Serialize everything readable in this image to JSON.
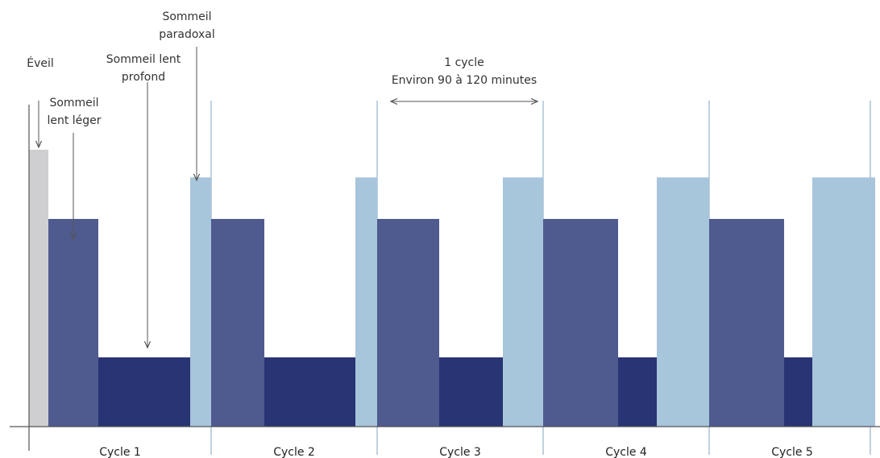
{
  "colors": {
    "eveil": "#cfcfd1",
    "leger": "#4f5a8f",
    "profond": "#283474",
    "paradoxal": "#a7c5db",
    "axis": "#555555",
    "separator": "#9fb8cf",
    "arrow": "#555555"
  },
  "annotations": {
    "eveil": [
      "Éveil"
    ],
    "leger": [
      "Sommeil",
      "lent léger"
    ],
    "profond": [
      "Sommeil lent",
      "profond"
    ],
    "paradoxal": [
      "Sommeil",
      "paradoxal"
    ],
    "cycle_span": [
      "1 cycle",
      "Environ 90 à 120  minutes"
    ]
  },
  "chart_data": {
    "type": "bar",
    "title": "",
    "xlabel": "",
    "ylabel": "",
    "stage_levels": {
      "Éveil": 4,
      "Sommeil lent léger": 3,
      "Sommeil lent profond": 1,
      "Sommeil paradoxal": 3.6
    },
    "cycles": [
      {
        "label": "Cycle 1",
        "stages": [
          "Éveil",
          "Sommeil lent léger",
          "Sommeil lent profond",
          "Sommeil paradoxal"
        ]
      },
      {
        "label": "Cycle 2",
        "stages": [
          "Sommeil lent léger",
          "Sommeil lent profond",
          "Sommeil paradoxal"
        ]
      },
      {
        "label": "Cycle 3",
        "stages": [
          "Sommeil lent léger",
          "Sommeil lent profond",
          "Sommeil paradoxal"
        ]
      },
      {
        "label": "Cycle 4",
        "stages": [
          "Sommeil lent léger",
          "Sommeil lent profond",
          "Sommeil paradoxal"
        ]
      },
      {
        "label": "Cycle 5",
        "stages": [
          "Sommeil lent léger",
          "Sommeil lent profond",
          "Sommeil paradoxal"
        ]
      }
    ]
  }
}
